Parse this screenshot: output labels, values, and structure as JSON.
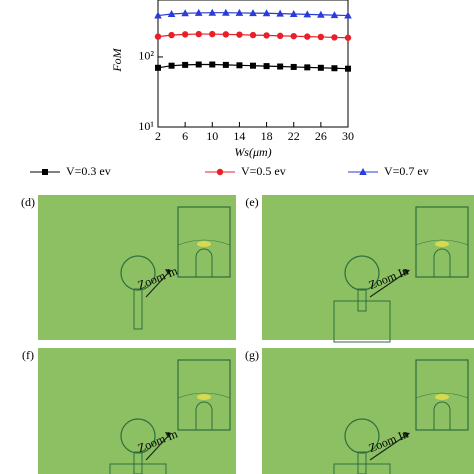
{
  "chart_data": {
    "type": "line",
    "x_label": "Ws(μm)",
    "y_label": "FoM",
    "log_y": true,
    "x": [
      2,
      4,
      6,
      8,
      10,
      12,
      14,
      16,
      18,
      20,
      22,
      24,
      26,
      28,
      30
    ],
    "xlim": [
      2,
      30
    ],
    "xticks": [
      2,
      6,
      10,
      14,
      18,
      22,
      26,
      30
    ],
    "ylim": [
      10,
      650
    ],
    "yticks": [
      {
        "value": 10,
        "label": "10¹"
      },
      {
        "value": 100,
        "label": "10²"
      }
    ],
    "series": [
      {
        "name": "V=0.3 ev",
        "color": "#000000",
        "marker": "square",
        "values": [
          70,
          75,
          77,
          78,
          78,
          77,
          76,
          75,
          74,
          73,
          72,
          71,
          70,
          69,
          68
        ]
      },
      {
        "name": "V=0.5 ev",
        "color": "#e8202a",
        "marker": "circle",
        "values": [
          195,
          205,
          210,
          212,
          212,
          210,
          208,
          205,
          203,
          200,
          198,
          195,
          193,
          190,
          188
        ]
      },
      {
        "name": "V=0.7 ev",
        "color": "#2a3bd6",
        "marker": "triangle",
        "values": [
          390,
          410,
          420,
          425,
          428,
          428,
          425,
          422,
          420,
          415,
          410,
          405,
          400,
          395,
          390
        ]
      }
    ]
  },
  "panels": [
    {
      "label": "(d)",
      "annotation": "Zoom In"
    },
    {
      "label": "(e)",
      "annotation": "Zoom In"
    },
    {
      "label": "(f)",
      "annotation": "Zoom In"
    },
    {
      "label": "(g)",
      "annotation": "Zoom In"
    }
  ]
}
